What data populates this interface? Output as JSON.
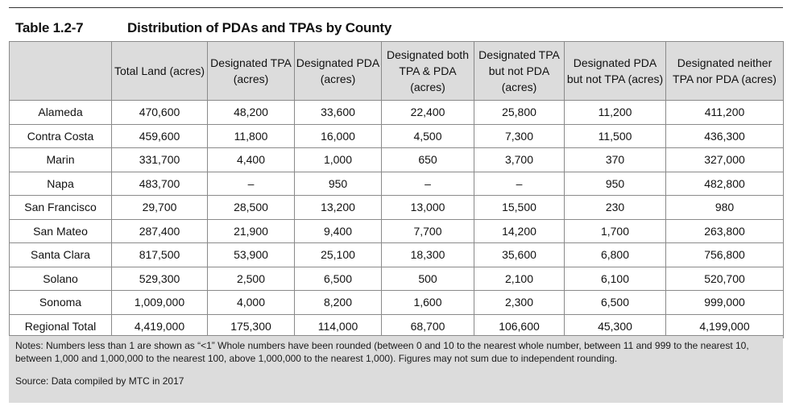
{
  "table_number": "Table 1.2-7",
  "title": "Distribution of PDAs and TPAs by County",
  "columns": [
    "",
    "Total Land (acres)",
    "Designated TPA (acres)",
    "Designated PDA (acres)",
    "Designated both TPA & PDA (acres)",
    "Designated TPA but not PDA (acres)",
    "Designated PDA but not TPA (acres)",
    "Designated neither TPA nor PDA (acres)"
  ],
  "rows": [
    [
      "Alameda",
      "470,600",
      "48,200",
      "33,600",
      "22,400",
      "25,800",
      "11,200",
      "411,200"
    ],
    [
      "Contra Costa",
      "459,600",
      "11,800",
      "16,000",
      "4,500",
      "7,300",
      "11,500",
      "436,300"
    ],
    [
      "Marin",
      "331,700",
      "4,400",
      "1,000",
      "650",
      "3,700",
      "370",
      "327,000"
    ],
    [
      "Napa",
      "483,700",
      "–",
      "950",
      "–",
      "–",
      "950",
      "482,800"
    ],
    [
      "San Francisco",
      "29,700",
      "28,500",
      "13,200",
      "13,000",
      "15,500",
      "230",
      "980"
    ],
    [
      "San Mateo",
      "287,400",
      "21,900",
      "9,400",
      "7,700",
      "14,200",
      "1,700",
      "263,800"
    ],
    [
      "Santa Clara",
      "817,500",
      "53,900",
      "25,100",
      "18,300",
      "35,600",
      "6,800",
      "756,800"
    ],
    [
      "Solano",
      "529,300",
      "2,500",
      "6,500",
      "500",
      "2,100",
      "6,100",
      "520,700"
    ],
    [
      "Sonoma",
      "1,009,000",
      "4,000",
      "8,200",
      "1,600",
      "2,300",
      "6,500",
      "999,000"
    ],
    [
      "Regional Total",
      "4,419,000",
      "175,300",
      "114,000",
      "68,700",
      "106,600",
      "45,300",
      "4,199,000"
    ]
  ],
  "notes": "Notes: Numbers less than 1 are shown as “<1” Whole numbers have been rounded (between 0 and 10 to the nearest whole number, between 11 and 999 to the nearest 10, between 1,000 and 1,000,000 to the nearest 100, above 1,000,000 to the nearest 1,000). Figures may not sum due to independent rounding.",
  "source": "Source: Data compiled by MTC in 2017"
}
